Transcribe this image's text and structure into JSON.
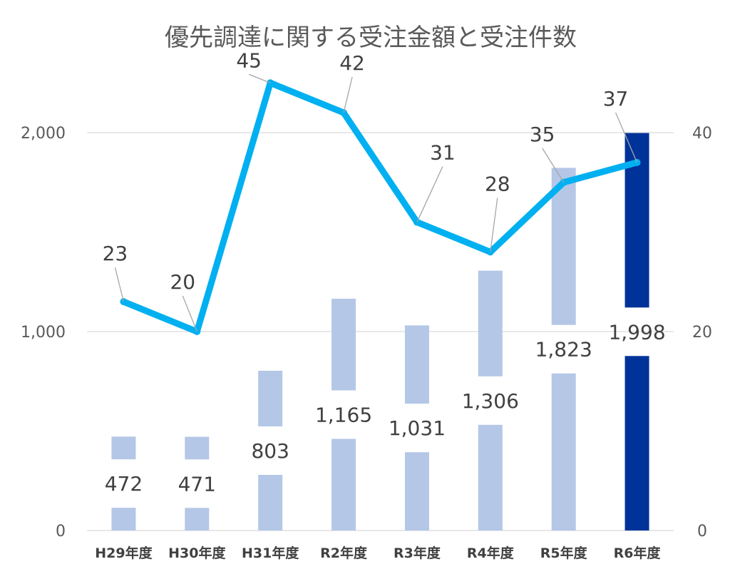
{
  "chart_data": {
    "type": "bar",
    "title": "優先調達に関する受注金額と受注件数",
    "categories": [
      "H29年度",
      "H30年度",
      "H31年度",
      "R2年度",
      "R3年度",
      "R4年度",
      "R5年度",
      "R6年度"
    ],
    "series": [
      {
        "type": "bar",
        "axis": "left",
        "values": [
          472,
          471,
          803,
          1165,
          1031,
          1306,
          1823,
          1998
        ],
        "labels": [
          "472",
          "471",
          "803",
          "1,165",
          "1,031",
          "1,306",
          "1,823",
          "1,998"
        ],
        "color": "#b4c7e7",
        "highlight_index": 7,
        "highlight_color": "#003399"
      },
      {
        "type": "line",
        "axis": "right",
        "values": [
          23,
          20,
          45,
          42,
          31,
          28,
          35,
          37
        ],
        "labels": [
          "23",
          "20",
          "45",
          "42",
          "31",
          "28",
          "35",
          "37"
        ],
        "color": "#00b0f0"
      }
    ],
    "y_left": {
      "min": 0,
      "max": 2000,
      "ticks": [
        "0",
        "1,000",
        "2,000"
      ],
      "tick_values": [
        0,
        1000,
        2000
      ]
    },
    "y_right": {
      "min": 0,
      "max": 40,
      "ticks": [
        "0",
        "20",
        "40"
      ],
      "tick_values": [
        0,
        20,
        40
      ]
    },
    "grid": true,
    "legend": "none"
  }
}
